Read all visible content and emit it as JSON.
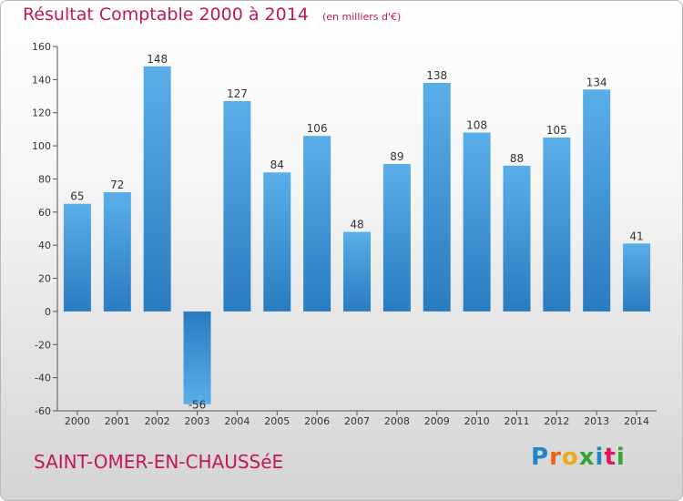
{
  "header": {
    "title": "Résultat Comptable 2000 à 2014",
    "unit": "(en milliers d'€)"
  },
  "footer": {
    "commune": "SAINT-OMER-EN-CHAUSSéE",
    "logo_text": "Proxiti"
  },
  "colors": {
    "title": "#c2185b",
    "bar_top": "#5aaee8",
    "bar_bottom": "#2a7cc0"
  },
  "chart_data": {
    "type": "bar",
    "title": "Résultat Comptable 2000 à 2014",
    "subtitle": "(en milliers d'€)",
    "categories": [
      "2000",
      "2001",
      "2002",
      "2003",
      "2004",
      "2005",
      "2006",
      "2007",
      "2008",
      "2009",
      "2010",
      "2011",
      "2012",
      "2013",
      "2014"
    ],
    "values": [
      65,
      72,
      148,
      -56,
      127,
      84,
      106,
      48,
      89,
      138,
      108,
      88,
      105,
      134,
      41
    ],
    "ylim": [
      -60,
      160
    ],
    "yticks": [
      -60,
      -40,
      -20,
      0,
      20,
      40,
      60,
      80,
      100,
      120,
      140,
      160
    ],
    "grid": false,
    "legend": "none"
  }
}
